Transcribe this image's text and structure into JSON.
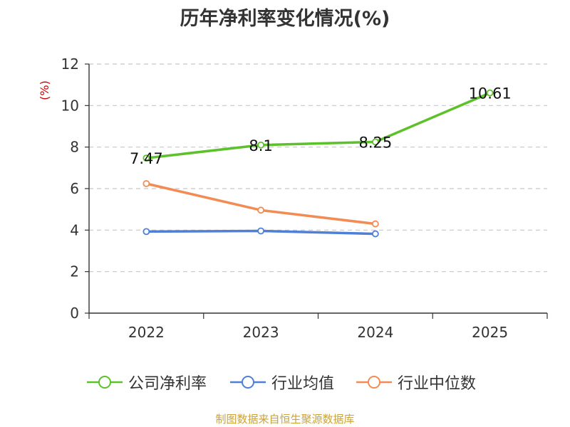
{
  "chart_data": {
    "type": "line",
    "title": "历年净利率变化情况(%)",
    "ylabel": "(%)",
    "categories": [
      "2022",
      "2023",
      "2024",
      "2025"
    ],
    "ylim": [
      0,
      12
    ],
    "yticks": [
      0,
      2,
      4,
      6,
      8,
      10,
      12
    ],
    "grid": true,
    "legend": "bottom",
    "series": [
      {
        "name": "公司净利率",
        "color": "#5cc12a",
        "values": [
          7.47,
          8.1,
          8.25,
          10.61
        ],
        "labels": [
          "7.47",
          "8.1",
          "8.25",
          "10.61"
        ]
      },
      {
        "name": "行业均值",
        "color": "#4f7fd6",
        "values": [
          3.93,
          3.96,
          3.82,
          null
        ]
      },
      {
        "name": "行业中位数",
        "color": "#f28b54",
        "values": [
          6.24,
          4.96,
          4.3,
          null
        ]
      }
    ]
  },
  "source": "制图数据来自恒生聚源数据库"
}
